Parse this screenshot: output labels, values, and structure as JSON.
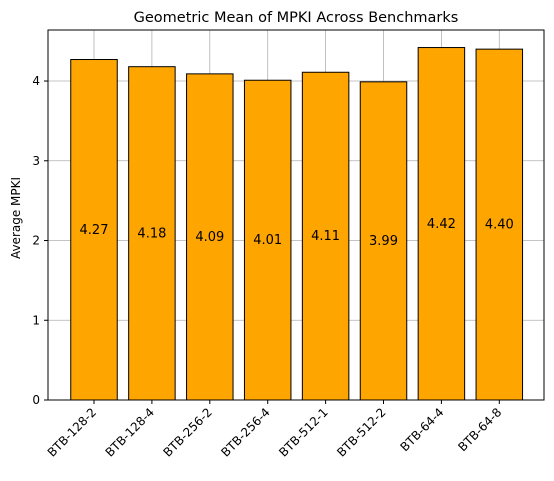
{
  "chart_data": {
    "type": "bar",
    "title": "Geometric Mean of MPKI Across Benchmarks",
    "xlabel": "",
    "ylabel": "Average MPKI",
    "categories": [
      "BTB-128-2",
      "BTB-128-4",
      "BTB-256-2",
      "BTB-256-4",
      "BTB-512-1",
      "BTB-512-2",
      "BTB-64-4",
      "BTB-64-8"
    ],
    "values": [
      4.27,
      4.18,
      4.09,
      4.01,
      4.11,
      3.99,
      4.42,
      4.4
    ],
    "value_labels": [
      "4.27",
      "4.18",
      "4.09",
      "4.01",
      "4.11",
      "3.99",
      "4.42",
      "4.40"
    ],
    "yticks": [
      0,
      1,
      2,
      3,
      4
    ],
    "ylim": [
      0,
      4.64
    ],
    "grid": true,
    "colors": {
      "bar_fill": "#FFA500",
      "bar_edge": "#000000",
      "grid": "#b0b0b0"
    }
  }
}
